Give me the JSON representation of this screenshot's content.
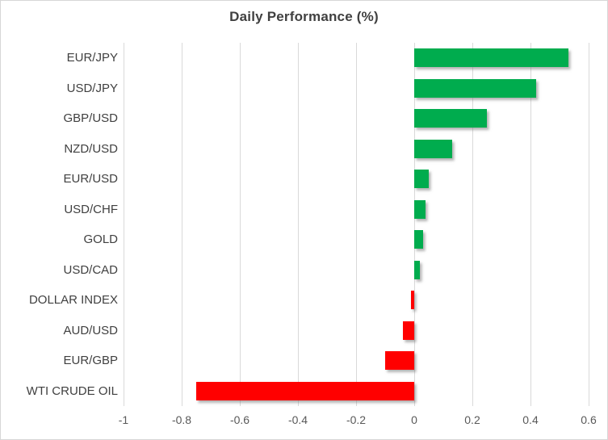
{
  "chart_data": {
    "type": "bar",
    "orientation": "horizontal",
    "title": "Daily Performance (%)",
    "categories": [
      "EUR/JPY",
      "USD/JPY",
      "GBP/USD",
      "NZD/USD",
      "EUR/USD",
      "USD/CHF",
      "GOLD",
      "USD/CAD",
      "DOLLAR INDEX",
      "AUD/USD",
      "EUR/GBP",
      "WTI CRUDE OIL"
    ],
    "values": [
      0.53,
      0.42,
      0.25,
      0.13,
      0.05,
      0.04,
      0.03,
      0.02,
      -0.01,
      -0.04,
      -0.1,
      -0.75
    ],
    "xlim": [
      -1.0,
      0.6
    ],
    "x_ticks": [
      -1.0,
      -0.8,
      -0.6,
      -0.4,
      -0.2,
      0.0,
      0.2,
      0.4,
      0.6
    ],
    "x_tick_labels": [
      "-1",
      "-0.8",
      "-0.6",
      "-0.4",
      "-0.2",
      "0",
      "0.2",
      "0.4",
      "0.6"
    ],
    "grid": true,
    "legend": "none",
    "colors": {
      "positive": "#00ac4e",
      "negative": "#ff0000",
      "gridline": "#d9d9d9",
      "title_text": "#404040",
      "category_text": "#404040",
      "tick_text": "#595959"
    }
  }
}
